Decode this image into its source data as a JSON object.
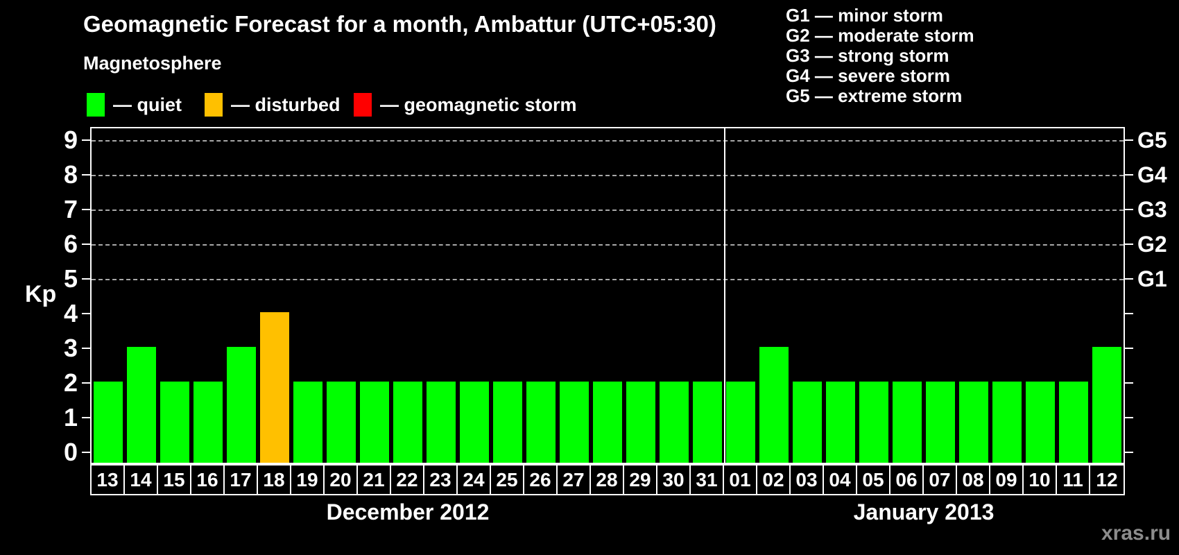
{
  "title": "Geomagnetic Forecast for a month, Ambattur (UTC+05:30)",
  "subtitle": "Magnetosphere",
  "legend": {
    "items": [
      {
        "key": "quiet",
        "label": "— quiet",
        "color": "#00ff00"
      },
      {
        "key": "disturbed",
        "label": "— disturbed",
        "color": "#ffc000"
      },
      {
        "key": "storm",
        "label": "— geomagnetic storm",
        "color": "#ff0000"
      }
    ]
  },
  "g_scale": [
    "G1 — minor storm",
    "G2 — moderate storm",
    "G3 — strong storm",
    "G4 — severe storm",
    "G5 — extreme storm"
  ],
  "watermark": "xras.ru",
  "chart_data": {
    "type": "bar",
    "ylabel": "Kp",
    "ylim": [
      0,
      9
    ],
    "yticks": [
      0,
      1,
      2,
      3,
      4,
      5,
      6,
      7,
      8,
      9
    ],
    "grid_levels": [
      5,
      6,
      7,
      8,
      9
    ],
    "right_axis": [
      {
        "kp": 5,
        "label": "G1"
      },
      {
        "kp": 6,
        "label": "G2"
      },
      {
        "kp": 7,
        "label": "G3"
      },
      {
        "kp": 8,
        "label": "G4"
      },
      {
        "kp": 9,
        "label": "G5"
      }
    ],
    "status_colors": {
      "quiet": "#00ff00",
      "disturbed": "#ffc000",
      "storm": "#ff0000"
    },
    "months": [
      {
        "label": "December 2012",
        "days": 19
      },
      {
        "label": "January 2013",
        "days": 12
      }
    ],
    "series": [
      {
        "day": "13",
        "kp": 2,
        "status": "quiet"
      },
      {
        "day": "14",
        "kp": 3,
        "status": "quiet"
      },
      {
        "day": "15",
        "kp": 2,
        "status": "quiet"
      },
      {
        "day": "16",
        "kp": 2,
        "status": "quiet"
      },
      {
        "day": "17",
        "kp": 3,
        "status": "quiet"
      },
      {
        "day": "18",
        "kp": 4,
        "status": "disturbed"
      },
      {
        "day": "19",
        "kp": 2,
        "status": "quiet"
      },
      {
        "day": "20",
        "kp": 2,
        "status": "quiet"
      },
      {
        "day": "21",
        "kp": 2,
        "status": "quiet"
      },
      {
        "day": "22",
        "kp": 2,
        "status": "quiet"
      },
      {
        "day": "23",
        "kp": 2,
        "status": "quiet"
      },
      {
        "day": "24",
        "kp": 2,
        "status": "quiet"
      },
      {
        "day": "25",
        "kp": 2,
        "status": "quiet"
      },
      {
        "day": "26",
        "kp": 2,
        "status": "quiet"
      },
      {
        "day": "27",
        "kp": 2,
        "status": "quiet"
      },
      {
        "day": "28",
        "kp": 2,
        "status": "quiet"
      },
      {
        "day": "29",
        "kp": 2,
        "status": "quiet"
      },
      {
        "day": "30",
        "kp": 2,
        "status": "quiet"
      },
      {
        "day": "31",
        "kp": 2,
        "status": "quiet"
      },
      {
        "day": "01",
        "kp": 2,
        "status": "quiet"
      },
      {
        "day": "02",
        "kp": 3,
        "status": "quiet"
      },
      {
        "day": "03",
        "kp": 2,
        "status": "quiet"
      },
      {
        "day": "04",
        "kp": 2,
        "status": "quiet"
      },
      {
        "day": "05",
        "kp": 2,
        "status": "quiet"
      },
      {
        "day": "06",
        "kp": 2,
        "status": "quiet"
      },
      {
        "day": "07",
        "kp": 2,
        "status": "quiet"
      },
      {
        "day": "08",
        "kp": 2,
        "status": "quiet"
      },
      {
        "day": "09",
        "kp": 2,
        "status": "quiet"
      },
      {
        "day": "10",
        "kp": 2,
        "status": "quiet"
      },
      {
        "day": "11",
        "kp": 2,
        "status": "quiet"
      },
      {
        "day": "12",
        "kp": 3,
        "status": "quiet"
      }
    ]
  }
}
